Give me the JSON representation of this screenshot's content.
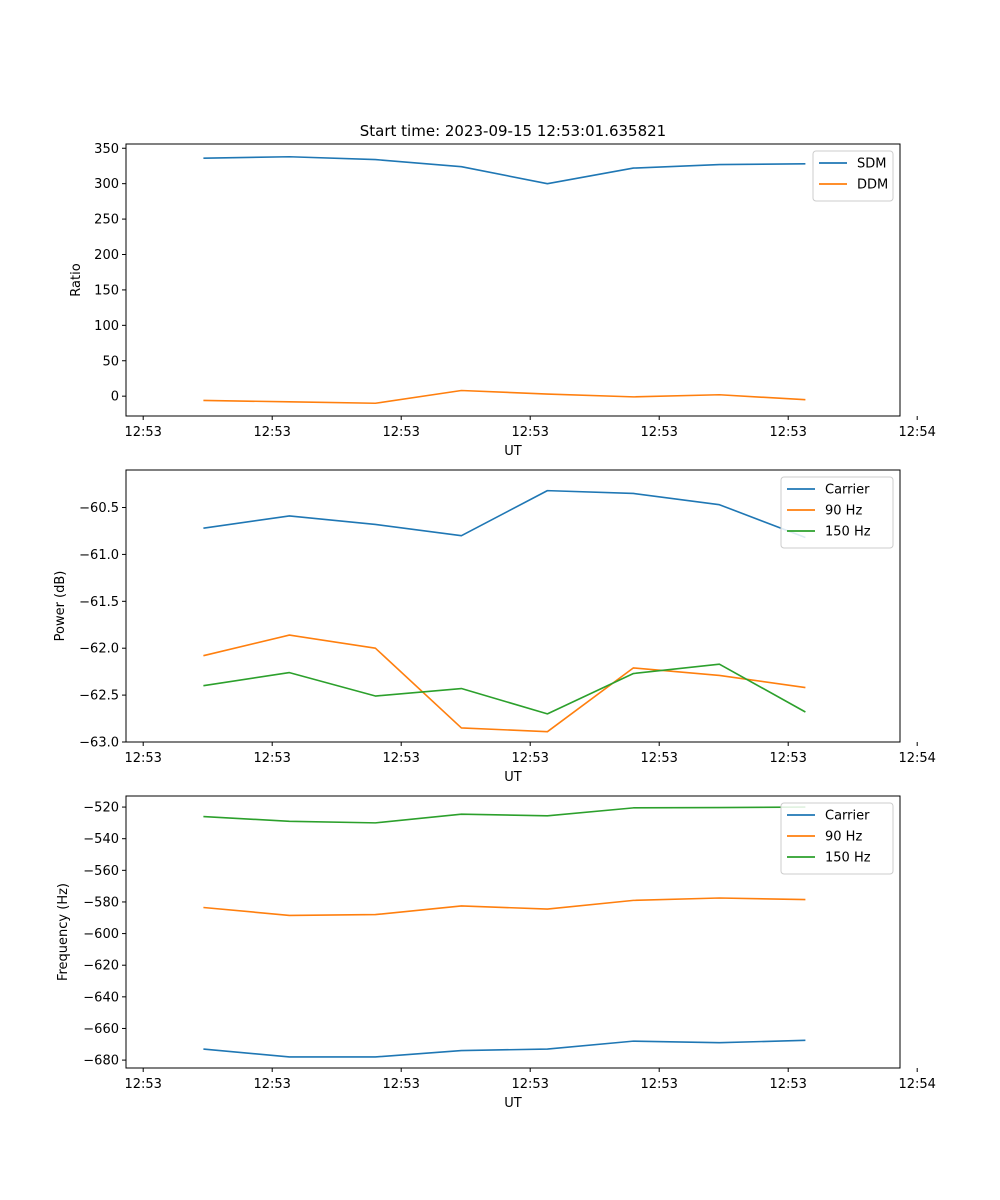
{
  "colors": {
    "series1": "#1f77b4",
    "series2": "#ff7f0e",
    "series3": "#2ca02c",
    "axis": "#000000",
    "legend_border": "#cccccc"
  },
  "chart_data": [
    {
      "type": "line",
      "title": "Start time: 2023-09-15 12:53:01.635821",
      "xlabel": "UT",
      "ylabel": "Ratio",
      "xlim": [
        -0.5,
        8.5
      ],
      "ylim": [
        -28,
        356
      ],
      "x_ticks": [
        -0.3,
        1.2,
        2.7,
        4.2,
        5.7,
        7.2,
        8.7
      ],
      "x_tick_labels": [
        "12:53",
        "12:53",
        "12:53",
        "12:53",
        "12:53",
        "12:53",
        "12:54"
      ],
      "y_ticks": [
        0,
        50,
        100,
        150,
        200,
        250,
        300,
        350
      ],
      "y_tick_labels": [
        "0",
        "50",
        "100",
        "150",
        "200",
        "250",
        "300",
        "350"
      ],
      "legend_position": "top-right",
      "x": [
        0.4,
        1.4,
        2.4,
        3.4,
        4.4,
        5.4,
        6.4,
        7.4
      ],
      "series": [
        {
          "name": "SDM",
          "values": [
            336,
            338,
            334,
            324,
            300,
            322,
            327,
            328
          ]
        },
        {
          "name": "DDM",
          "values": [
            -6,
            -8,
            -10,
            8,
            3,
            -1,
            2,
            -5
          ]
        }
      ]
    },
    {
      "type": "line",
      "title": "",
      "xlabel": "UT",
      "ylabel": "Power (dB)",
      "xlim": [
        -0.5,
        8.5
      ],
      "ylim": [
        -63.0,
        -60.1
      ],
      "x_ticks": [
        -0.3,
        1.2,
        2.7,
        4.2,
        5.7,
        7.2,
        8.7
      ],
      "x_tick_labels": [
        "12:53",
        "12:53",
        "12:53",
        "12:53",
        "12:53",
        "12:53",
        "12:54"
      ],
      "y_ticks": [
        -63.0,
        -62.5,
        -62.0,
        -61.5,
        -61.0,
        -60.5
      ],
      "y_tick_labels": [
        "−63.0",
        "−62.5",
        "−62.0",
        "−61.5",
        "−61.0",
        "−60.5"
      ],
      "legend_position": "top-right",
      "x": [
        0.4,
        1.4,
        2.4,
        3.4,
        4.4,
        5.4,
        6.4,
        7.4
      ],
      "series": [
        {
          "name": "Carrier",
          "values": [
            -60.72,
            -60.59,
            -60.68,
            -60.8,
            -60.32,
            -60.35,
            -60.47,
            -60.82
          ]
        },
        {
          "name": "90 Hz",
          "values": [
            -62.08,
            -61.86,
            -62.0,
            -62.85,
            -62.89,
            -62.21,
            -62.29,
            -62.42
          ]
        },
        {
          "name": "150 Hz",
          "values": [
            -62.4,
            -62.26,
            -62.51,
            -62.43,
            -62.7,
            -62.27,
            -62.17,
            -62.68
          ]
        }
      ]
    },
    {
      "type": "line",
      "title": "",
      "xlabel": "UT",
      "ylabel": "Frequency (Hz)",
      "xlim": [
        -0.5,
        8.5
      ],
      "ylim": [
        -685,
        -513
      ],
      "x_ticks": [
        -0.3,
        1.2,
        2.7,
        4.2,
        5.7,
        7.2,
        8.7
      ],
      "x_tick_labels": [
        "12:53",
        "12:53",
        "12:53",
        "12:53",
        "12:53",
        "12:53",
        "12:54"
      ],
      "y_ticks": [
        -680,
        -660,
        -640,
        -620,
        -600,
        -580,
        -560,
        -540,
        -520
      ],
      "y_tick_labels": [
        "−680",
        "−660",
        "−640",
        "−620",
        "−600",
        "−580",
        "−560",
        "−540",
        "−520"
      ],
      "legend_position": "top-right",
      "x": [
        0.4,
        1.4,
        2.4,
        3.4,
        4.4,
        5.4,
        6.4,
        7.4
      ],
      "series": [
        {
          "name": "Carrier",
          "values": [
            -673,
            -678,
            -678,
            -674,
            -673,
            -668,
            -669,
            -667.5
          ]
        },
        {
          "name": "90 Hz",
          "values": [
            -583.5,
            -588.5,
            -588,
            -582.5,
            -584.5,
            -579,
            -577.5,
            -578.5
          ]
        },
        {
          "name": "150 Hz",
          "values": [
            -526,
            -529,
            -530,
            -524.5,
            -525.5,
            -520.5,
            -520.3,
            -520
          ]
        }
      ]
    }
  ]
}
